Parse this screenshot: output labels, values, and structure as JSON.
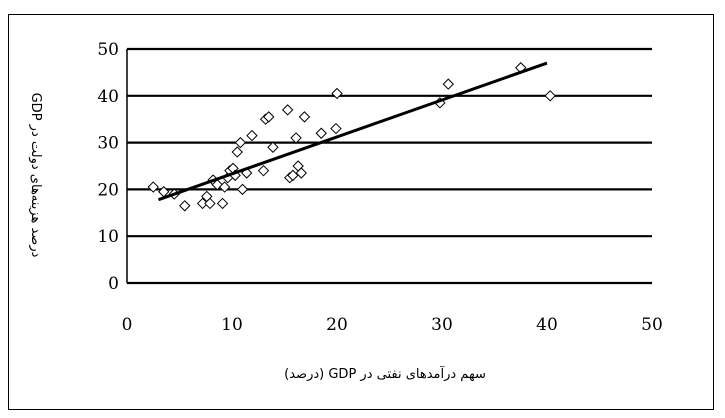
{
  "chart_data": {
    "type": "scatter",
    "title": "",
    "xlabel": "سهم درآمدهای نفتی در GDP (درصد)",
    "ylabel": "درصد هزینه‌های دولت در GDP",
    "xlim": [
      0,
      50
    ],
    "ylim": [
      0,
      50
    ],
    "xticks": [
      "0",
      "10",
      "20",
      "30",
      "40",
      "50"
    ],
    "yticks": [
      "0",
      "10",
      "20",
      "30",
      "40",
      "50"
    ],
    "grid": "horizontal",
    "legend": "none",
    "marker": "open-diamond",
    "points": [
      {
        "x": 2.5,
        "y": 20.5
      },
      {
        "x": 3.5,
        "y": 19.5
      },
      {
        "x": 4.5,
        "y": 19
      },
      {
        "x": 5.5,
        "y": 16.5
      },
      {
        "x": 7.2,
        "y": 17
      },
      {
        "x": 7.6,
        "y": 18.5
      },
      {
        "x": 7.9,
        "y": 17
      },
      {
        "x": 8.2,
        "y": 22
      },
      {
        "x": 8.6,
        "y": 21
      },
      {
        "x": 9.1,
        "y": 17
      },
      {
        "x": 9.3,
        "y": 20.5
      },
      {
        "x": 9.6,
        "y": 22.5
      },
      {
        "x": 9.8,
        "y": 24
      },
      {
        "x": 10.1,
        "y": 24.5
      },
      {
        "x": 10.3,
        "y": 23
      },
      {
        "x": 10.5,
        "y": 28
      },
      {
        "x": 10.8,
        "y": 30
      },
      {
        "x": 11,
        "y": 20
      },
      {
        "x": 11.4,
        "y": 23.5
      },
      {
        "x": 11.9,
        "y": 31.5
      },
      {
        "x": 13,
        "y": 24
      },
      {
        "x": 13.2,
        "y": 35
      },
      {
        "x": 13.5,
        "y": 35.5
      },
      {
        "x": 13.9,
        "y": 29
      },
      {
        "x": 15.3,
        "y": 37
      },
      {
        "x": 15.5,
        "y": 22.5
      },
      {
        "x": 15.8,
        "y": 23
      },
      {
        "x": 16.1,
        "y": 31
      },
      {
        "x": 16.3,
        "y": 25
      },
      {
        "x": 16.6,
        "y": 23.5
      },
      {
        "x": 16.9,
        "y": 35.5
      },
      {
        "x": 18.5,
        "y": 32
      },
      {
        "x": 19.9,
        "y": 33
      },
      {
        "x": 20,
        "y": 40.5
      },
      {
        "x": 29.8,
        "y": 38.5
      },
      {
        "x": 30.6,
        "y": 42.5
      },
      {
        "x": 37.5,
        "y": 46
      },
      {
        "x": 40.3,
        "y": 40
      }
    ],
    "trendline": {
      "x": [
        3,
        40
      ],
      "y": [
        17.8,
        47
      ]
    }
  }
}
